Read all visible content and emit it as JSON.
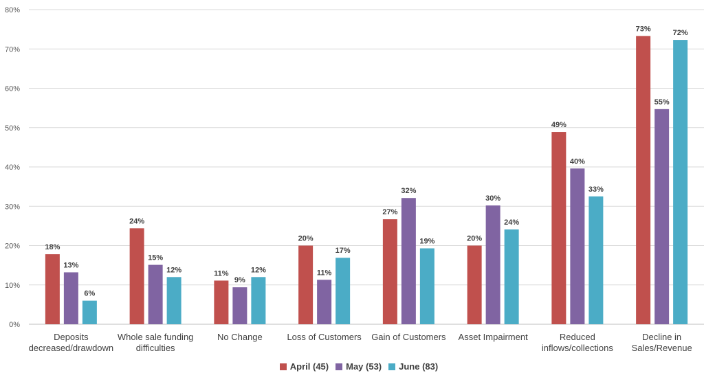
{
  "chart_data": {
    "type": "bar",
    "categories": [
      [
        "Deposits",
        "decreased/drawdown"
      ],
      [
        "Whole sale funding",
        "difficulties"
      ],
      [
        "No Change"
      ],
      [
        "Loss of Customers"
      ],
      [
        "Gain of Customers"
      ],
      [
        "Asset Impairment"
      ],
      [
        "Reduced",
        "inflows/collections"
      ],
      [
        "Decline in",
        "Sales/Revenue"
      ]
    ],
    "series": [
      {
        "name": "April (45)",
        "color": "#c0504d",
        "values": [
          17.8,
          24.4,
          11.1,
          20.0,
          26.7,
          20.0,
          48.9,
          73.3
        ],
        "labels": [
          "18%",
          "24%",
          "11%",
          "20%",
          "27%",
          "20%",
          "49%",
          "73%"
        ]
      },
      {
        "name": "May (53)",
        "color": "#8064a2",
        "values": [
          13.2,
          15.1,
          9.4,
          11.3,
          32.1,
          30.2,
          39.6,
          54.7
        ],
        "labels": [
          "13%",
          "15%",
          "9%",
          "11%",
          "32%",
          "30%",
          "40%",
          "55%"
        ]
      },
      {
        "name": "June (83)",
        "color": "#4bacc6",
        "values": [
          6.0,
          12.0,
          12.0,
          16.9,
          19.3,
          24.1,
          32.5,
          72.3
        ],
        "labels": [
          "6%",
          "12%",
          "12%",
          "17%",
          "19%",
          "24%",
          "33%",
          "72%"
        ]
      }
    ],
    "yticks": [
      "0%",
      "10%",
      "20%",
      "30%",
      "40%",
      "50%",
      "60%",
      "70%",
      "80%"
    ],
    "ylim": [
      0,
      80
    ],
    "grid": true,
    "legend_position": "bottom"
  }
}
